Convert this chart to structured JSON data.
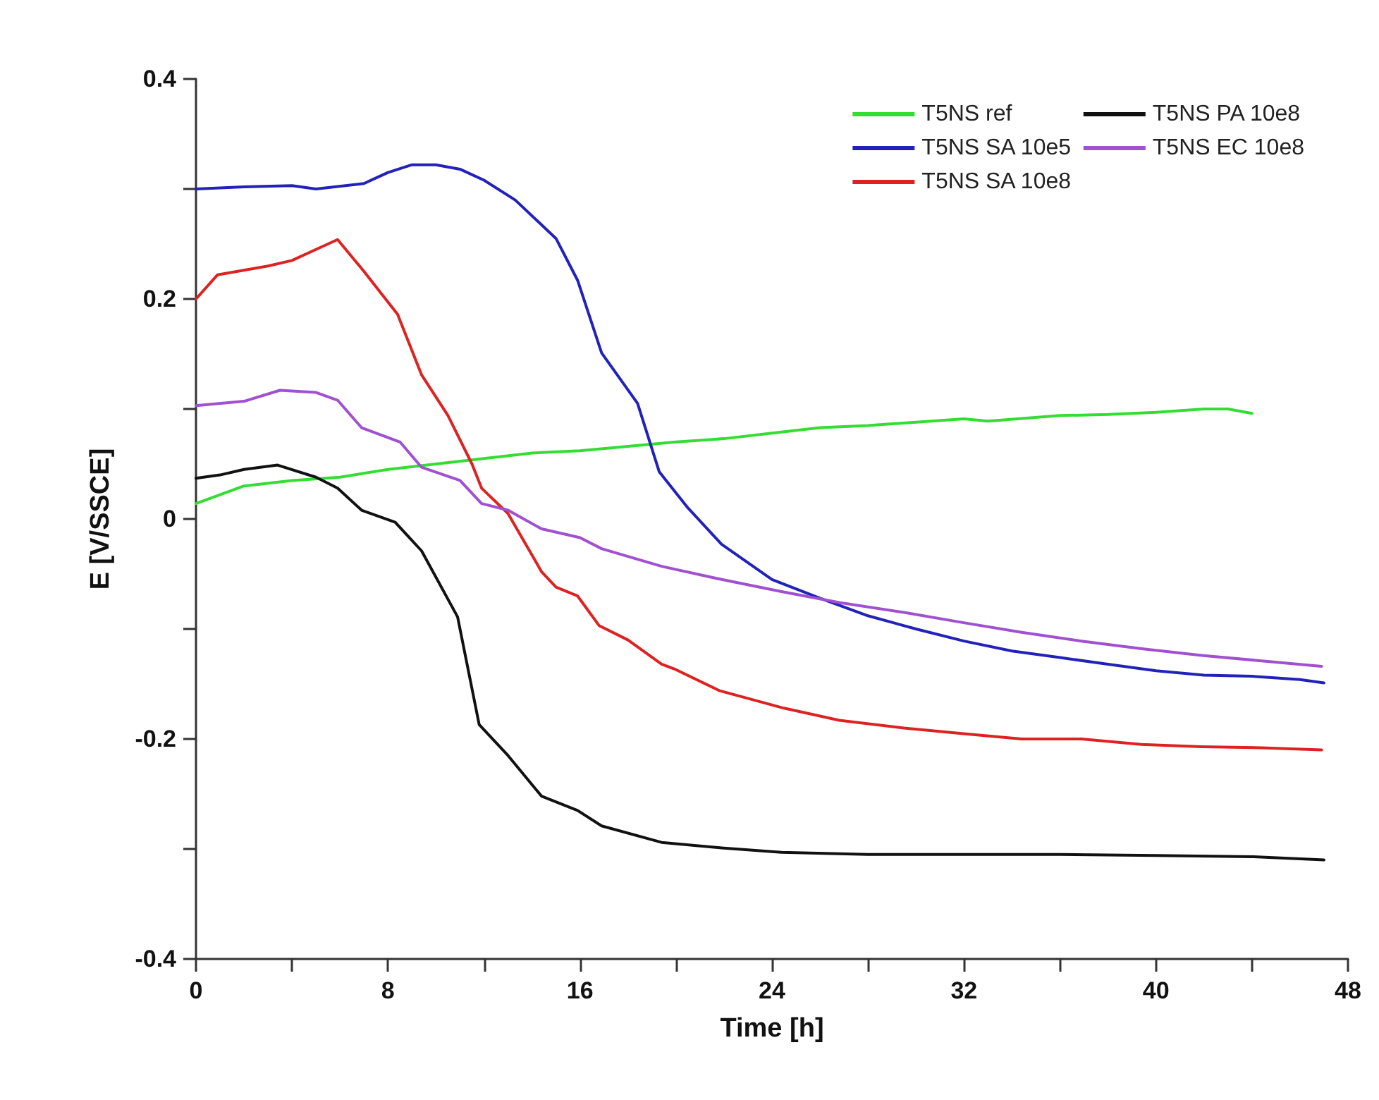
{
  "chart_data": {
    "type": "line",
    "xlabel": "Time [h]",
    "ylabel": "E [V/SSCE]",
    "xlim": [
      0,
      48
    ],
    "ylim": [
      -0.4,
      0.4
    ],
    "xticks": [
      0,
      {
        "value": 4,
        "label": null
      },
      8,
      {
        "value": 12,
        "label": null
      },
      16,
      {
        "value": 20,
        "label": null
      },
      24,
      {
        "value": 28,
        "label": null
      },
      32,
      {
        "value": 36,
        "label": null
      },
      40,
      {
        "value": 44,
        "label": null
      },
      48
    ],
    "yticks": [
      -0.4,
      {
        "value": -0.3,
        "label": null
      },
      -0.2,
      {
        "value": -0.1,
        "label": null
      },
      0,
      {
        "value": 0.1,
        "label": null
      },
      0.2,
      {
        "value": 0.3,
        "label": null
      },
      0.4
    ],
    "legend": "top right",
    "line_style": "solid",
    "series": [
      {
        "name": "T5NS ref",
        "color": "#33dd33",
        "x": [
          0,
          2,
          4,
          6,
          8,
          10,
          12,
          14,
          16,
          18,
          20,
          22,
          24,
          26,
          28,
          30,
          32,
          33,
          36,
          38,
          40,
          42,
          43,
          44
        ],
        "values": [
          0.014,
          0.03,
          0.035,
          0.038,
          0.045,
          0.05,
          0.055,
          0.06,
          0.062,
          0.066,
          0.07,
          0.073,
          0.078,
          0.083,
          0.085,
          0.088,
          0.091,
          0.089,
          0.094,
          0.095,
          0.097,
          0.1,
          0.1,
          0.096
        ]
      },
      {
        "name": "T5NS SA 10e5",
        "color": "#2222bb",
        "x": [
          0,
          2,
          4,
          5,
          7,
          8,
          9,
          10,
          11,
          12,
          13.3,
          15,
          15.9,
          16.9,
          18.4,
          19.3,
          20.5,
          21.9,
          24,
          26,
          28,
          30,
          32,
          34,
          36,
          38,
          40,
          42,
          44,
          46,
          47
        ],
        "values": [
          0.3,
          0.302,
          0.303,
          0.3,
          0.305,
          0.315,
          0.322,
          0.322,
          0.318,
          0.308,
          0.29,
          0.255,
          0.217,
          0.151,
          0.105,
          0.043,
          0.01,
          -0.023,
          -0.055,
          -0.072,
          -0.088,
          -0.1,
          -0.111,
          -0.12,
          -0.126,
          -0.132,
          -0.138,
          -0.142,
          -0.143,
          -0.146,
          -0.149
        ]
      },
      {
        "name": "T5NS SA 10e8",
        "color": "#dd2222",
        "x": [
          0,
          0.9,
          3,
          4,
          5,
          5.9,
          7,
          8.4,
          9.4,
          10.5,
          11.5,
          11.9,
          13,
          14.4,
          15,
          15.9,
          16.8,
          18,
          19.4,
          20,
          21.8,
          24.5,
          26.8,
          29.5,
          31.9,
          34.4,
          36.9,
          39.4,
          41.9,
          44.4,
          46.9
        ],
        "values": [
          0.2,
          0.222,
          0.23,
          0.235,
          0.245,
          0.254,
          0.225,
          0.186,
          0.131,
          0.094,
          0.05,
          0.028,
          0.005,
          -0.048,
          -0.062,
          -0.07,
          -0.097,
          -0.11,
          -0.132,
          -0.137,
          -0.156,
          -0.172,
          -0.183,
          -0.19,
          -0.195,
          -0.2,
          -0.2,
          -0.205,
          -0.207,
          -0.208,
          -0.21
        ]
      },
      {
        "name": "T5NS PA 10e8",
        "color": "#111111",
        "x": [
          0,
          1,
          2,
          3.4,
          5,
          5.9,
          6.9,
          8.3,
          9.4,
          10.9,
          11.8,
          13,
          14.4,
          15.9,
          16.9,
          19.4,
          21.9,
          24.4,
          28,
          32,
          36,
          40,
          44,
          47
        ],
        "values": [
          0.037,
          0.04,
          0.045,
          0.049,
          0.038,
          0.028,
          0.008,
          -0.003,
          -0.029,
          -0.089,
          -0.187,
          -0.215,
          -0.252,
          -0.265,
          -0.279,
          -0.294,
          -0.299,
          -0.303,
          -0.305,
          -0.305,
          -0.305,
          -0.306,
          -0.307,
          -0.31
        ]
      },
      {
        "name": "T5NS EC 10e8",
        "color": "#a050d0",
        "x": [
          0,
          2,
          3.5,
          5,
          5.9,
          6.9,
          8.5,
          9.4,
          11,
          11.9,
          13,
          14.4,
          16,
          16.9,
          19.4,
          21.9,
          24.4,
          26.8,
          29.5,
          31.9,
          34.4,
          36.9,
          39.4,
          41.9,
          44.4,
          46.9
        ],
        "values": [
          0.103,
          0.107,
          0.117,
          0.115,
          0.108,
          0.083,
          0.07,
          0.047,
          0.035,
          0.014,
          0.008,
          -0.009,
          -0.017,
          -0.027,
          -0.043,
          -0.055,
          -0.066,
          -0.076,
          -0.085,
          -0.094,
          -0.103,
          -0.111,
          -0.118,
          -0.124,
          -0.129,
          -0.134
        ]
      }
    ]
  }
}
